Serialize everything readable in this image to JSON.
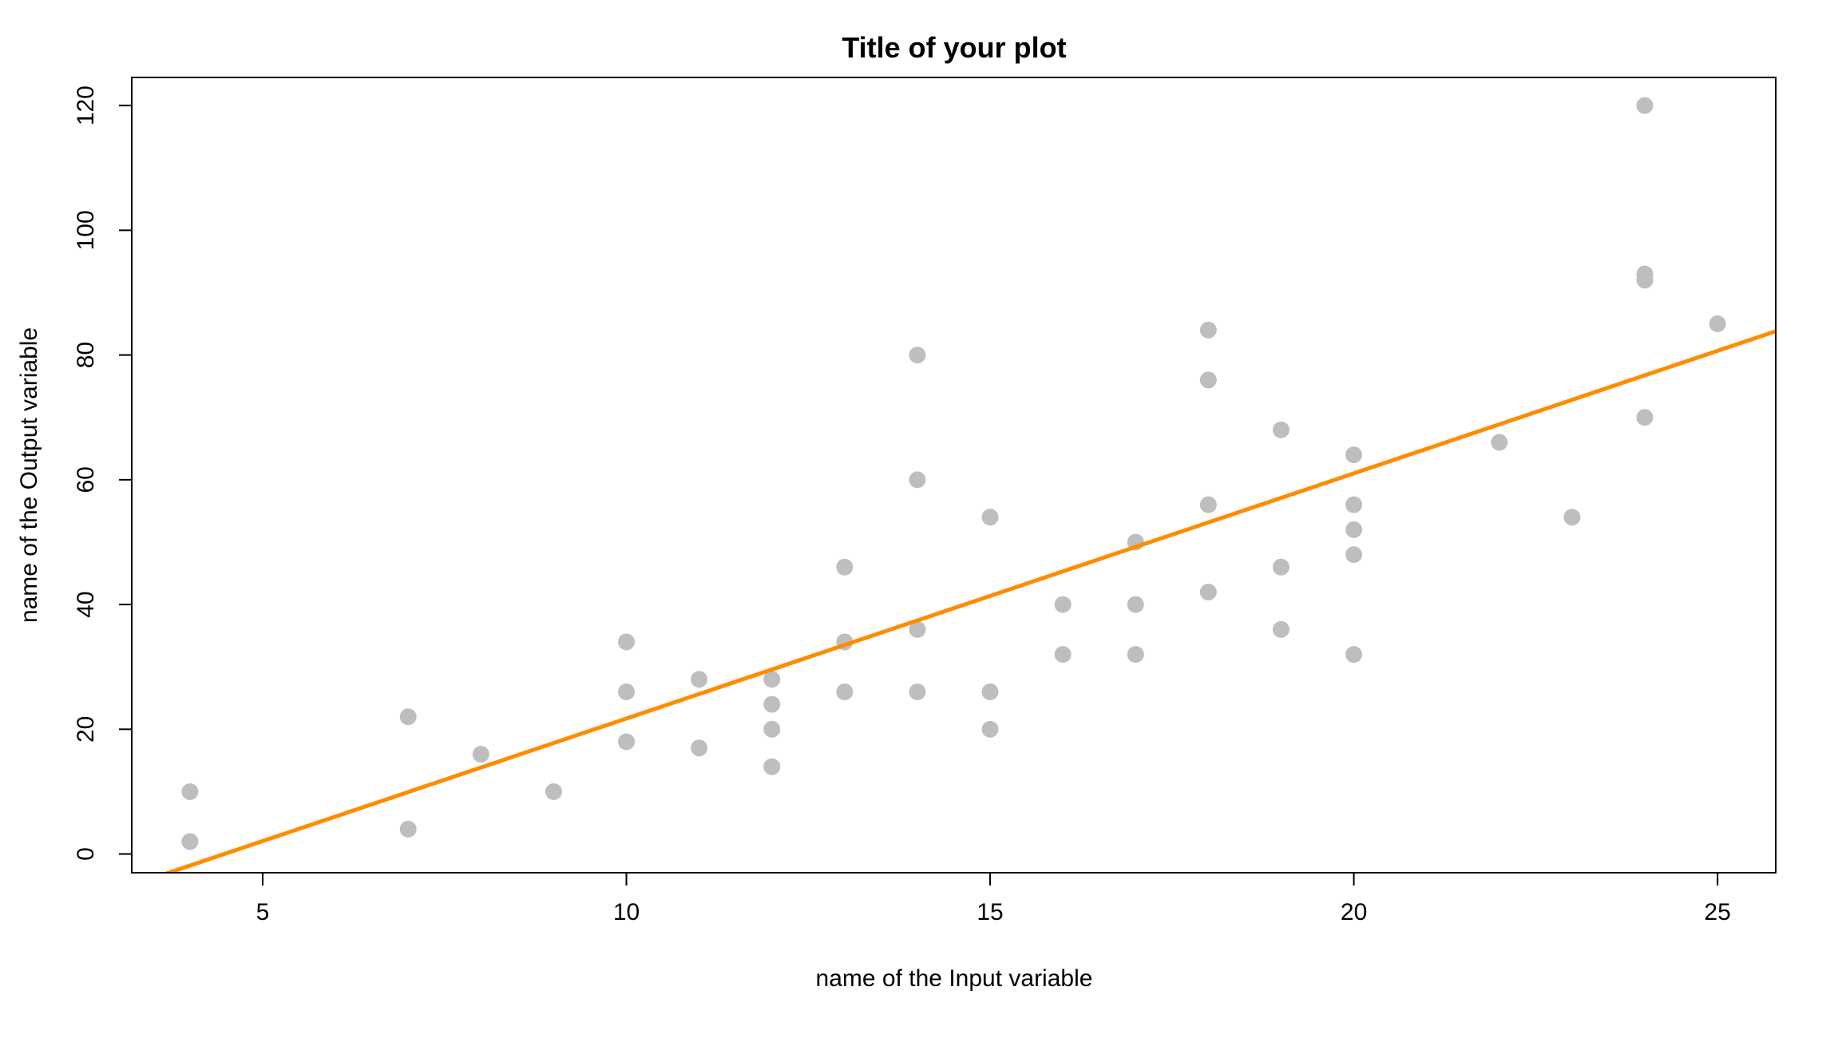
{
  "chart_data": {
    "type": "scatter",
    "title": "Title of your plot",
    "xlabel": "name of the Input variable",
    "ylabel": "name of the Output variable",
    "xlim": [
      3.2,
      25.8
    ],
    "ylim": [
      -3,
      124.5
    ],
    "x_ticks": [
      5,
      10,
      15,
      20,
      25
    ],
    "y_ticks": [
      0,
      20,
      40,
      60,
      80,
      100,
      120
    ],
    "grid": false,
    "legend": "none",
    "colors": {
      "points": "#bebebe",
      "line": "#ff8c00",
      "axis": "#000000",
      "background": "#ffffff"
    },
    "series": [
      {
        "type": "scatter",
        "x": [
          4,
          4,
          7,
          7,
          8,
          9,
          10,
          10,
          10,
          11,
          11,
          12,
          12,
          12,
          12,
          13,
          13,
          13,
          14,
          14,
          14,
          14,
          15,
          15,
          15,
          16,
          16,
          17,
          17,
          17,
          18,
          18,
          18,
          18,
          19,
          19,
          19,
          20,
          20,
          20,
          20,
          20,
          22,
          23,
          24,
          24,
          24,
          24,
          25
        ],
        "y": [
          2,
          10,
          4,
          22,
          16,
          10,
          18,
          26,
          34,
          17,
          28,
          14,
          20,
          24,
          28,
          26,
          34,
          46,
          26,
          36,
          60,
          80,
          20,
          26,
          54,
          32,
          40,
          32,
          40,
          50,
          42,
          56,
          76,
          84,
          36,
          46,
          68,
          32,
          48,
          52,
          56,
          64,
          66,
          54,
          70,
          92,
          93,
          120,
          85
        ]
      },
      {
        "type": "line",
        "intercept": -17.58,
        "slope": 3.93
      }
    ]
  }
}
